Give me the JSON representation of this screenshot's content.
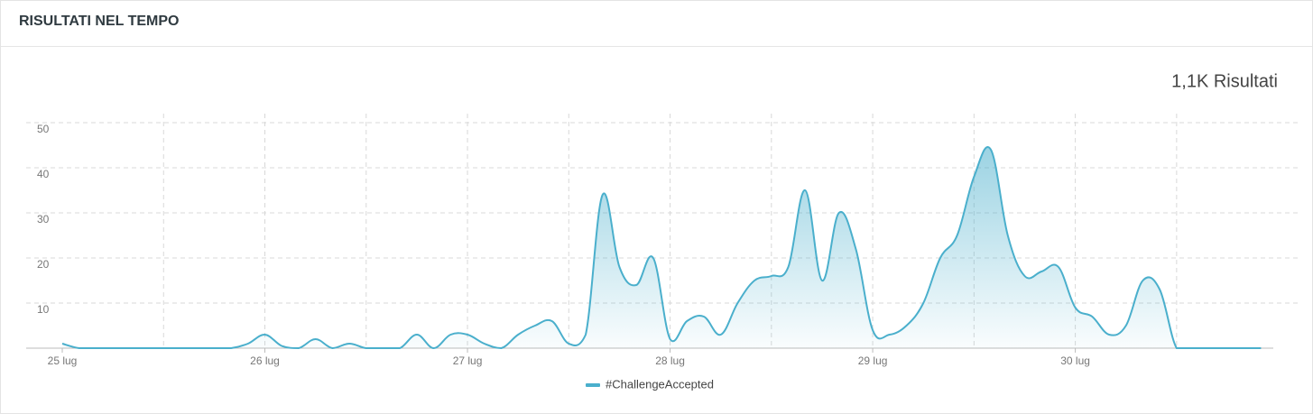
{
  "header": {
    "title": "RISULTATI NEL TEMPO"
  },
  "chart_data": {
    "type": "area",
    "annotation": "1,1K Risultati",
    "categories": [
      "25 lug",
      null,
      null,
      null,
      null,
      null,
      null,
      null,
      null,
      null,
      null,
      null,
      "26 lug",
      null,
      null,
      null,
      null,
      null,
      null,
      null,
      null,
      null,
      null,
      null,
      "27 lug",
      null,
      null,
      null,
      null,
      null,
      null,
      null,
      null,
      null,
      null,
      null,
      "28 lug",
      null,
      null,
      null,
      null,
      null,
      null,
      null,
      null,
      null,
      null,
      null,
      "29 lug",
      null,
      null,
      null,
      null,
      null,
      null,
      null,
      null,
      null,
      null,
      null,
      "30 lug",
      null,
      null,
      null,
      null,
      null,
      null,
      null,
      null,
      null,
      null,
      null
    ],
    "series": [
      {
        "name": "#ChallengeAccepted",
        "color": "#4aafcc",
        "values": [
          1,
          0,
          0,
          0,
          0,
          0,
          0,
          0,
          0,
          0,
          0,
          1,
          3,
          0.5,
          0,
          2,
          0,
          1,
          0,
          0,
          0,
          3,
          0,
          3,
          3,
          1,
          0,
          3,
          5,
          6,
          1,
          3,
          34,
          18,
          14,
          20,
          2,
          6,
          7,
          3,
          10,
          15,
          16,
          18,
          35,
          15,
          30,
          22,
          4,
          3,
          5,
          10,
          20,
          25,
          38,
          44,
          25,
          16,
          17,
          18,
          9,
          7,
          3,
          5,
          15,
          13,
          0,
          0,
          0,
          0,
          0,
          0
        ]
      }
    ],
    "ylim": [
      0,
      50
    ],
    "yticks": [
      10,
      20,
      30,
      40,
      50
    ],
    "grid": true
  }
}
